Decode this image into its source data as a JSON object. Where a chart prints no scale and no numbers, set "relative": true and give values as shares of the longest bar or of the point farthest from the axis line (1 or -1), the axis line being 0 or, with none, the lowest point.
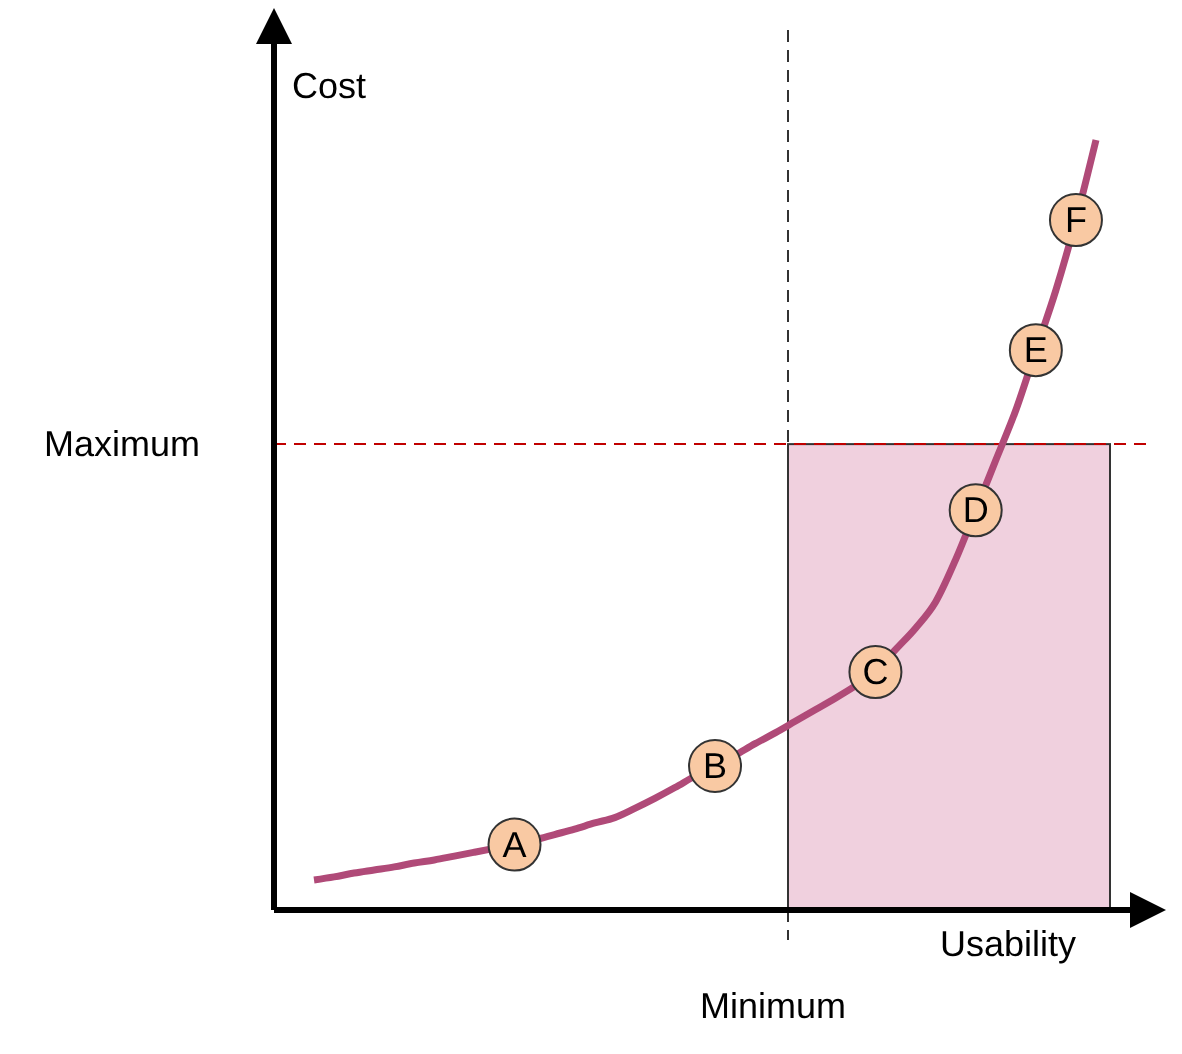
{
  "chart_data": {
    "type": "line",
    "relative": true,
    "xlabel": "Usability",
    "ylabel": "Cost",
    "legend": false,
    "marker": "none",
    "line_style": "solid",
    "categories": [
      null,
      null,
      null,
      null,
      null,
      null,
      null,
      null,
      null,
      null,
      null,
      null,
      null,
      null,
      null,
      null,
      null,
      null,
      null,
      null,
      null,
      null,
      null,
      null,
      null,
      null,
      null,
      null,
      null,
      null,
      null,
      null,
      null,
      null,
      null,
      null,
      null,
      null,
      null,
      null
    ],
    "series": [
      {
        "color": "#b04a78",
        "values": [
          0.039,
          0.043,
          0.048,
          0.052,
          0.056,
          0.061,
          0.065,
          0.07,
          0.075,
          0.08,
          0.085,
          0.091,
          0.098,
          0.105,
          0.113,
          0.12,
          0.132,
          0.145,
          0.159,
          0.174,
          0.187,
          0.201,
          0.216,
          0.23,
          0.245,
          0.26,
          0.275,
          0.291,
          0.309,
          0.338,
          0.366,
          0.4,
          0.455,
          0.519,
          0.584,
          0.649,
          0.727,
          0.805,
          0.896,
          1.0
        ]
      }
    ],
    "ref_lines": [
      {
        "axis": "y",
        "value": 0.605,
        "label": "Maximum",
        "color": "#c00000",
        "line_style": "dashed"
      }
    ],
    "annotations": [
      "Minimum",
      {
        "text": "A",
        "y": 0.085
      },
      {
        "text": "B",
        "y": 0.187
      },
      {
        "text": "C",
        "y": 0.309
      },
      {
        "text": "D",
        "y": 0.519
      },
      {
        "text": "E",
        "y": 0.727
      },
      {
        "text": "F",
        "y": 0.896
      }
    ]
  }
}
